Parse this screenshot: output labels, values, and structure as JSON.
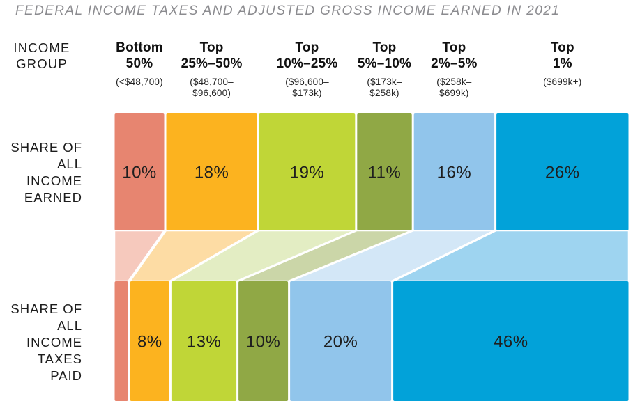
{
  "title": "FEDERAL INCOME TAXES AND ADJUSTED GROSS INCOME EARNED IN 2021",
  "axis": {
    "income_group_label": "INCOME GROUP"
  },
  "rows": {
    "income": {
      "label": "SHARE OF ALL INCOME EARNED"
    },
    "taxes": {
      "label": "SHARE OF ALL INCOME TAXES PAID"
    }
  },
  "colors": {
    "background": "#FFFFFF",
    "title_text": "#8B8B8F",
    "label_text": "#1C1C1C",
    "separator": "#FFFFFF"
  },
  "chart_data": {
    "type": "bar",
    "variant": "two-row stacked percentage bars with flow ribbons (alluvial)",
    "unit": "%",
    "row_labels": [
      "SHARE OF ALL INCOME EARNED",
      "SHARE OF ALL INCOME TAXES PAID"
    ],
    "categories": [
      "Bottom 50%",
      "Top 25%–50%",
      "Top 10%–25%",
      "Top 5%–10%",
      "Top 2%–5%",
      "Top 1%"
    ],
    "series": [
      {
        "name": "SHARE OF ALL INCOME EARNED",
        "values": [
          10,
          18,
          19,
          11,
          16,
          26
        ]
      },
      {
        "name": "SHARE OF ALL INCOME TAXES PAID",
        "values": [
          3,
          8,
          13,
          10,
          20,
          46
        ]
      }
    ],
    "groups": [
      {
        "label_line1": "Bottom",
        "label_line2": "50%",
        "range": "(<$48,700)",
        "income_share": 10,
        "income_label": "10%",
        "tax_share": 3,
        "tax_label": "",
        "color": "#E78570",
        "flow_color": "#F6C9BD"
      },
      {
        "label_line1": "Top",
        "label_line2": "25%–50%",
        "range": "($48,700–$96,600)",
        "income_share": 18,
        "income_label": "18%",
        "tax_share": 8,
        "tax_label": "8%",
        "color": "#FCB31F",
        "flow_color": "#FDDCA4"
      },
      {
        "label_line1": "Top",
        "label_line2": "10%–25%",
        "range": "($96,600–$173k)",
        "income_share": 19,
        "income_label": "19%",
        "tax_share": 13,
        "tax_label": "13%",
        "color": "#C0D637",
        "flow_color": "#E3EDC3"
      },
      {
        "label_line1": "Top",
        "label_line2": "5%–10%",
        "range": "($173k–$258k)",
        "income_share": 11,
        "income_label": "11%",
        "tax_share": 10,
        "tax_label": "10%",
        "color": "#90A845",
        "flow_color": "#CBD6A8"
      },
      {
        "label_line1": "Top",
        "label_line2": "2%–5%",
        "range": "($258k–$699k)",
        "income_share": 16,
        "income_label": "16%",
        "tax_share": 20,
        "tax_label": "20%",
        "color": "#91C5EB",
        "flow_color": "#D3E7F7"
      },
      {
        "label_line1": "Top",
        "label_line2": "1%",
        "range": "($699k+)",
        "income_share": 26,
        "income_label": "26%",
        "tax_share": 46,
        "tax_label": "46%",
        "color": "#02A2D9",
        "flow_color": "#9ED4F0"
      }
    ]
  }
}
